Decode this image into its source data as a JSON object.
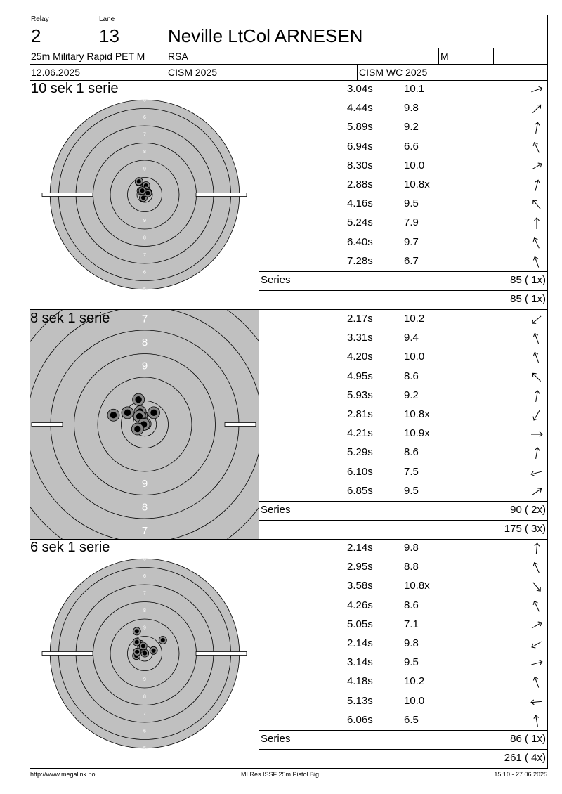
{
  "header": {
    "relay_label": "Relay",
    "relay": "2",
    "lane_label": "Lane",
    "lane": "13",
    "name": "Neville LtCol ARNESEN",
    "discipline": "25m Military Rapid PET M",
    "nation": "RSA",
    "gender": "M",
    "date": "12.06.2025",
    "event": "CISM 2025",
    "competition": "CISM WC 2025"
  },
  "series": [
    {
      "title": "10 sek 1 serie",
      "target": {
        "style": "full",
        "ring_numbers": [
          "5",
          "6",
          "7",
          "8",
          "9",
          "9",
          "8",
          "7",
          "6",
          "5"
        ]
      },
      "shots": [
        {
          "time": "3.04s",
          "score": "10.1",
          "direction": 70,
          "x": 0.8,
          "y": 0.7
        },
        {
          "time": "4.44s",
          "score": "9.8",
          "direction": 45,
          "x": -1.0,
          "y": -2.2
        },
        {
          "time": "5.89s",
          "score": "9.2",
          "direction": 10,
          "x": 0.9,
          "y": 6.5
        },
        {
          "time": "6.94s",
          "score": "6.6",
          "direction": -25,
          "x": -4.0,
          "y": 9.0
        },
        {
          "time": "8.30s",
          "score": "10.0",
          "direction": 60,
          "x": 0.9,
          "y": 3.2
        },
        {
          "time": "2.88s",
          "score": "10.8x",
          "direction": 15,
          "x": 2.2,
          "y": 1.8
        },
        {
          "time": "4.16s",
          "score": "9.5",
          "direction": -40,
          "x": -2.7,
          "y": 2.7
        },
        {
          "time": "5.24s",
          "score": "7.9",
          "direction": 0,
          "x": -4.1,
          "y": 9.4
        },
        {
          "time": "6.40s",
          "score": "9.7",
          "direction": -25,
          "x": 2.2,
          "y": 1.1
        },
        {
          "time": "7.28s",
          "score": "6.7",
          "direction": -20,
          "x": -1.7,
          "y": 2.9
        }
      ],
      "series_label": "Series",
      "series_total": "85 ( 1x)",
      "cumulative_total": "85 ( 1x)"
    },
    {
      "title": "8 sek 1 serie",
      "target": {
        "style": "zoom",
        "ring_numbers": [
          "7",
          "8",
          "9",
          "9",
          "8",
          "7"
        ]
      },
      "shots": [
        {
          "time": "2.17s",
          "score": "10.2",
          "direction": -130,
          "x": -1.4,
          "y": 3.7
        },
        {
          "time": "3.31s",
          "score": "9.4",
          "direction": -20,
          "x": -2.6,
          "y": 10.4
        },
        {
          "time": "4.20s",
          "score": "10.0",
          "direction": -20,
          "x": -1.9,
          "y": 5.3
        },
        {
          "time": "4.95s",
          "score": "8.6",
          "direction": -45,
          "x": 3.8,
          "y": 4.9
        },
        {
          "time": "5.93s",
          "score": "9.2",
          "direction": 10,
          "x": -2.2,
          "y": 3.4
        },
        {
          "time": "2.81s",
          "score": "10.8x",
          "direction": -150,
          "x": 0.2,
          "y": 0.2
        },
        {
          "time": "4.21s",
          "score": "10.9x",
          "direction": 90,
          "x": -0.4,
          "y": 0.0
        },
        {
          "time": "5.29s",
          "score": "8.6",
          "direction": 10,
          "x": -7.2,
          "y": 4.9
        },
        {
          "time": "6.10s",
          "score": "7.5",
          "direction": -105,
          "x": -13.1,
          "y": 3.9
        },
        {
          "time": "6.85s",
          "score": "9.5",
          "direction": 55,
          "x": -3.0,
          "y": -1.9
        }
      ],
      "series_label": "Series",
      "series_total": "90 ( 2x)",
      "cumulative_total": "175 ( 3x)"
    },
    {
      "title": "6 sek 1 serie",
      "target": {
        "style": "full",
        "ring_numbers": [
          "5",
          "6",
          "7",
          "8",
          "9",
          "9",
          "8",
          "7",
          "6",
          "5"
        ]
      },
      "shots": [
        {
          "time": "2.14s",
          "score": "9.8",
          "direction": 5,
          "x": -3.0,
          "y": 6.6
        },
        {
          "time": "2.95s",
          "score": "8.8",
          "direction": -25,
          "x": -5.6,
          "y": 15.8
        },
        {
          "time": "3.58s",
          "score": "10.8x",
          "direction": 140,
          "x": 0.1,
          "y": 0.2
        },
        {
          "time": "4.26s",
          "score": "8.6",
          "direction": -25,
          "x": -5.6,
          "y": 8.2
        },
        {
          "time": "5.05s",
          "score": "7.1",
          "direction": 60,
          "x": 12.9,
          "y": 9.5
        },
        {
          "time": "2.14s",
          "score": "9.8",
          "direction": -120,
          "x": 6.3,
          "y": 2.1
        },
        {
          "time": "3.14s",
          "score": "9.5",
          "direction": 75,
          "x": -5.9,
          "y": -1.6
        },
        {
          "time": "4.18s",
          "score": "10.2",
          "direction": -20,
          "x": -2.3,
          "y": 3.7
        },
        {
          "time": "5.13s",
          "score": "10.0",
          "direction": -95,
          "x": -1.1,
          "y": 5.3
        },
        {
          "time": "6.06s",
          "score": "6.5",
          "direction": -10,
          "x": -5.4,
          "y": 1.1
        }
      ],
      "series_label": "Series",
      "series_total": "86 ( 1x)",
      "cumulative_total": "261 ( 4x)"
    }
  ],
  "footer": {
    "url": "http://www.megalink.no",
    "software": "MLRes ISSF 25m Pistol Big",
    "timestamp": "15:10 - 27.06.2025"
  }
}
